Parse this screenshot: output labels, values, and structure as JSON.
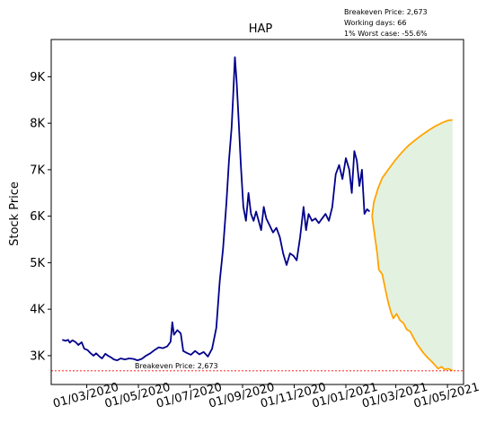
{
  "chart_data": {
    "type": "line",
    "title": "HAP",
    "ylabel": "Stock Price",
    "xlabel": "",
    "info_lines": [
      "Breakeven Price: 2,673",
      "Working days: 66",
      "1% Worst case: -55.6%"
    ],
    "breakeven_label": "Breakeven Price: 2,673",
    "breakeven": 2673,
    "xlim": [
      "2020-01-19",
      "2021-05-20"
    ],
    "ylim": [
      2380,
      9800
    ],
    "y_ticks": [
      3000,
      4000,
      5000,
      6000,
      7000,
      8000,
      9000
    ],
    "y_tick_labels": [
      "3K",
      "4K",
      "5K",
      "6K",
      "7K",
      "8K",
      "9K"
    ],
    "x_ticks": [
      "2020-03-01",
      "2020-05-01",
      "2020-07-01",
      "2020-09-01",
      "2020-11-01",
      "2021-01-01",
      "2021-03-01",
      "2021-05-01"
    ],
    "x_tick_labels": [
      "01/03/2020",
      "01/05/2020",
      "01/07/2020",
      "01/09/2020",
      "01/11/2020",
      "01/01/2021",
      "01/03/2021",
      "01/05/2021"
    ],
    "grid": false,
    "series": [
      {
        "role": "historical",
        "color": "#00008b",
        "points": [
          [
            "2020-02-01",
            3340
          ],
          [
            "2020-02-05",
            3320
          ],
          [
            "2020-02-08",
            3340
          ],
          [
            "2020-02-10",
            3280
          ],
          [
            "2020-02-13",
            3330
          ],
          [
            "2020-02-17",
            3290
          ],
          [
            "2020-02-20",
            3230
          ],
          [
            "2020-02-24",
            3290
          ],
          [
            "2020-02-27",
            3150
          ],
          [
            "2020-03-02",
            3120
          ],
          [
            "2020-03-05",
            3060
          ],
          [
            "2020-03-09",
            3000
          ],
          [
            "2020-03-12",
            3050
          ],
          [
            "2020-03-16",
            2980
          ],
          [
            "2020-03-19",
            2940
          ],
          [
            "2020-03-23",
            3040
          ],
          [
            "2020-03-26",
            3000
          ],
          [
            "2020-03-30",
            2960
          ],
          [
            "2020-04-02",
            2920
          ],
          [
            "2020-04-06",
            2900
          ],
          [
            "2020-04-10",
            2940
          ],
          [
            "2020-04-15",
            2920
          ],
          [
            "2020-04-20",
            2940
          ],
          [
            "2020-04-25",
            2930
          ],
          [
            "2020-04-30",
            2900
          ],
          [
            "2020-05-05",
            2930
          ],
          [
            "2020-05-10",
            3000
          ],
          [
            "2020-05-15",
            3050
          ],
          [
            "2020-05-20",
            3120
          ],
          [
            "2020-05-25",
            3180
          ],
          [
            "2020-05-30",
            3160
          ],
          [
            "2020-06-04",
            3200
          ],
          [
            "2020-06-08",
            3300
          ],
          [
            "2020-06-10",
            3720
          ],
          [
            "2020-06-12",
            3450
          ],
          [
            "2020-06-16",
            3550
          ],
          [
            "2020-06-20",
            3480
          ],
          [
            "2020-06-23",
            3100
          ],
          [
            "2020-06-27",
            3060
          ],
          [
            "2020-07-02",
            3020
          ],
          [
            "2020-07-07",
            3100
          ],
          [
            "2020-07-12",
            3030
          ],
          [
            "2020-07-17",
            3080
          ],
          [
            "2020-07-22",
            2980
          ],
          [
            "2020-07-27",
            3150
          ],
          [
            "2020-08-01",
            3600
          ],
          [
            "2020-08-05",
            4600
          ],
          [
            "2020-08-09",
            5300
          ],
          [
            "2020-08-13",
            6300
          ],
          [
            "2020-08-16",
            7200
          ],
          [
            "2020-08-19",
            7900
          ],
          [
            "2020-08-21",
            8600
          ],
          [
            "2020-08-23",
            9420
          ],
          [
            "2020-08-25",
            8900
          ],
          [
            "2020-08-27",
            8200
          ],
          [
            "2020-08-30",
            7100
          ],
          [
            "2020-09-02",
            6200
          ],
          [
            "2020-09-05",
            5900
          ],
          [
            "2020-09-08",
            6500
          ],
          [
            "2020-09-11",
            6050
          ],
          [
            "2020-09-14",
            5900
          ],
          [
            "2020-09-17",
            6100
          ],
          [
            "2020-09-20",
            5900
          ],
          [
            "2020-09-23",
            5700
          ],
          [
            "2020-09-26",
            6200
          ],
          [
            "2020-09-29",
            5950
          ],
          [
            "2020-10-03",
            5800
          ],
          [
            "2020-10-07",
            5650
          ],
          [
            "2020-10-11",
            5750
          ],
          [
            "2020-10-15",
            5550
          ],
          [
            "2020-10-19",
            5200
          ],
          [
            "2020-10-23",
            4950
          ],
          [
            "2020-10-27",
            5200
          ],
          [
            "2020-10-31",
            5150
          ],
          [
            "2020-11-04",
            5050
          ],
          [
            "2020-11-08",
            5550
          ],
          [
            "2020-11-12",
            6200
          ],
          [
            "2020-11-15",
            5700
          ],
          [
            "2020-11-18",
            6050
          ],
          [
            "2020-11-22",
            5900
          ],
          [
            "2020-11-26",
            5950
          ],
          [
            "2020-11-30",
            5850
          ],
          [
            "2020-12-04",
            5950
          ],
          [
            "2020-12-08",
            6050
          ],
          [
            "2020-12-12",
            5900
          ],
          [
            "2020-12-16",
            6200
          ],
          [
            "2020-12-20",
            6900
          ],
          [
            "2020-12-24",
            7100
          ],
          [
            "2020-12-28",
            6800
          ],
          [
            "2021-01-01",
            7250
          ],
          [
            "2021-01-05",
            7000
          ],
          [
            "2021-01-08",
            6500
          ],
          [
            "2021-01-11",
            7400
          ],
          [
            "2021-01-14",
            7200
          ],
          [
            "2021-01-17",
            6650
          ],
          [
            "2021-01-20",
            7000
          ],
          [
            "2021-01-23",
            6050
          ],
          [
            "2021-01-26",
            6150
          ],
          [
            "2021-01-29",
            6100
          ]
        ]
      },
      {
        "role": "projection-upper",
        "color": "#ffa500",
        "points": [
          [
            "2021-02-01",
            6000
          ],
          [
            "2021-02-03",
            6300
          ],
          [
            "2021-02-08",
            6600
          ],
          [
            "2021-02-13",
            6820
          ],
          [
            "2021-02-20",
            7000
          ],
          [
            "2021-02-28",
            7200
          ],
          [
            "2021-03-08",
            7370
          ],
          [
            "2021-03-16",
            7520
          ],
          [
            "2021-03-24",
            7640
          ],
          [
            "2021-04-01",
            7750
          ],
          [
            "2021-04-09",
            7850
          ],
          [
            "2021-04-17",
            7940
          ],
          [
            "2021-04-25",
            8010
          ],
          [
            "2021-05-02",
            8060
          ],
          [
            "2021-05-07",
            8070
          ]
        ]
      },
      {
        "role": "projection-lower",
        "color": "#ffa500",
        "points": [
          [
            "2021-02-01",
            6000
          ],
          [
            "2021-02-04",
            5600
          ],
          [
            "2021-02-07",
            5200
          ],
          [
            "2021-02-09",
            4850
          ],
          [
            "2021-02-13",
            4750
          ],
          [
            "2021-02-17",
            4400
          ],
          [
            "2021-02-20",
            4150
          ],
          [
            "2021-02-23",
            3950
          ],
          [
            "2021-02-26",
            3800
          ],
          [
            "2021-03-02",
            3900
          ],
          [
            "2021-03-06",
            3760
          ],
          [
            "2021-03-10",
            3700
          ],
          [
            "2021-03-14",
            3560
          ],
          [
            "2021-03-18",
            3520
          ],
          [
            "2021-03-22",
            3380
          ],
          [
            "2021-03-26",
            3250
          ],
          [
            "2021-03-30",
            3150
          ],
          [
            "2021-04-03",
            3050
          ],
          [
            "2021-04-08",
            2950
          ],
          [
            "2021-04-12",
            2880
          ],
          [
            "2021-04-16",
            2800
          ],
          [
            "2021-04-20",
            2720
          ],
          [
            "2021-04-24",
            2760
          ],
          [
            "2021-04-28",
            2700
          ],
          [
            "2021-05-02",
            2720
          ],
          [
            "2021-05-07",
            2680
          ]
        ]
      }
    ],
    "band_fill_color": "#e3f1e1",
    "breakeven_color": "#ff0000"
  }
}
